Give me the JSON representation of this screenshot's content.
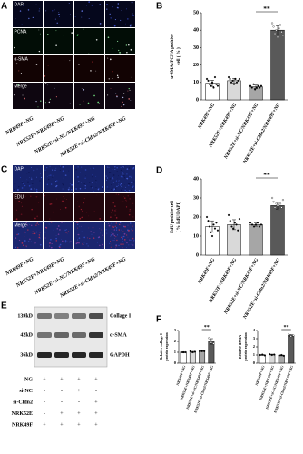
{
  "panel_a": {
    "letter": "A",
    "rows": [
      "DAPI",
      "PCNA",
      "α-SMA",
      "Merge"
    ],
    "columns": [
      "NRK49F+NG",
      "NRK52E+NRK49F+NG",
      "NRK52E+si-NC/NRK49F+NG",
      "NRK52E+si-Cldn2/NRK49F+NG"
    ]
  },
  "panel_c": {
    "letter": "C",
    "rows": [
      "DAPI",
      "EDU",
      "Merge"
    ],
    "columns": [
      "NRK49F+NG",
      "NRK52E+NRK49F+NG",
      "NRK52E+si-NC/NRK49F+NG",
      "NRK52E+si-Cldn2/NRK49F+NG"
    ]
  },
  "panel_e": {
    "letter": "E",
    "sizes": [
      "139kD",
      "42kD",
      "36kD"
    ],
    "proteins": [
      "Collage I",
      "α-SMA",
      "GAPDH"
    ],
    "conditions": [
      {
        "name": "NG",
        "signs": [
          "+",
          "+",
          "+",
          "+"
        ]
      },
      {
        "name": "si-NC",
        "signs": [
          "-",
          "-",
          "+",
          "-"
        ]
      },
      {
        "name": "si-Cldn2",
        "signs": [
          "-",
          "-",
          "-",
          "+"
        ]
      },
      {
        "name": "NRK52E",
        "signs": [
          "-",
          "+",
          "+",
          "+"
        ]
      },
      {
        "name": "NRK49F",
        "signs": [
          "+",
          "+",
          "+",
          "+"
        ]
      }
    ]
  },
  "chart_data": [
    {
      "type": "bar",
      "panel": "B",
      "ylabel": [
        "α-SMA /PCNA positive",
        "cell ( % )"
      ],
      "categories": [
        "NRK49F+NG",
        "NRK52E+NRK49F+NG",
        "NRK52E+si-NC/NRK49F+NG",
        "NRK52E+si-Cldn2/NRK49F+NG"
      ],
      "values": [
        9.5,
        11,
        7.5,
        40
      ],
      "errors": [
        1.8,
        1.3,
        1,
        2.6
      ],
      "points": [
        [
          12,
          11,
          9,
          8,
          10,
          7,
          13,
          9,
          8
        ],
        [
          13,
          12,
          10,
          11,
          9,
          12,
          10,
          11,
          12
        ],
        [
          8,
          7,
          9,
          6,
          7,
          8,
          7,
          8
        ],
        [
          44,
          42,
          38,
          40,
          36,
          41,
          43,
          39,
          37
        ]
      ],
      "colors": [
        "#ffffff",
        "#d9d9d9",
        "#a6a6a6",
        "#595959"
      ],
      "ylim": [
        0,
        50
      ],
      "yticks": [
        0,
        10,
        20,
        30,
        40,
        50
      ],
      "significance": "**"
    },
    {
      "type": "bar",
      "panel": "D",
      "ylabel": [
        "EdU positive cell",
        "( % EdU/DAPI)"
      ],
      "categories": [
        "NRK49F+NG",
        "NRK52E+NRK49F+NG",
        "NRK52E+si-NC/NRK49F+NG",
        "NRK52E+si-Cldn2/NRK49F+NG"
      ],
      "values": [
        15,
        16,
        16,
        26
      ],
      "errors": [
        3,
        2.6,
        0.8,
        1.8
      ],
      "points": [
        [
          20,
          18,
          15,
          12,
          10,
          16,
          14,
          17,
          13
        ],
        [
          21,
          18,
          15,
          14,
          17,
          16,
          13,
          19
        ],
        [
          17,
          16,
          15,
          16,
          17,
          15,
          16
        ],
        [
          30,
          28,
          25,
          27,
          26,
          24,
          27,
          25,
          29
        ]
      ],
      "colors": [
        "#ffffff",
        "#d9d9d9",
        "#a6a6a6",
        "#595959"
      ],
      "ylim": [
        0,
        40
      ],
      "yticks": [
        0,
        10,
        20,
        30,
        40
      ],
      "significance": "**"
    },
    {
      "type": "bar",
      "panel": "F",
      "ylabel": [
        "Relative collage I",
        "protein expression"
      ],
      "categories": [
        "NRK49F+NG",
        "NRK52E+NRK49F+NG",
        "NRK52E+si-NC/NRK49F+NG",
        "NRK52E+si-Cldn2/NRK49F+NG"
      ],
      "values": [
        1.0,
        1.03,
        1.1,
        2.0
      ],
      "errors": [
        0.05,
        0.05,
        0.03,
        0.25
      ],
      "points": [
        [
          1,
          1,
          1
        ],
        [
          1.1,
          1,
          1.05
        ],
        [
          1.1,
          1.1,
          1.1
        ],
        [
          2.3,
          1.9,
          1.8
        ]
      ],
      "colors": [
        "#ffffff",
        "#d9d9d9",
        "#a6a6a6",
        "#595959"
      ],
      "ylim": [
        0,
        3
      ],
      "yticks": [
        0,
        1,
        2,
        3
      ],
      "significance": "**"
    },
    {
      "type": "bar",
      "ylabel": [
        "Relative αSMA",
        "protein expression"
      ],
      "categories": [
        "NRK49F+NG",
        "NRK52E+NRK49F+NG",
        "NRK52E+si-NC/NRK49F+NG",
        "NRK52E+si-Cldn2/NRK49F+NG"
      ],
      "values": [
        1.0,
        1.05,
        0.95,
        3.4
      ],
      "errors": [
        0.05,
        0.05,
        0.05,
        0.1
      ],
      "points": [
        [
          1,
          1.05,
          0.95
        ],
        [
          1.1,
          1,
          1.05
        ],
        [
          0.95,
          1,
          0.9
        ],
        [
          3.5,
          3.3,
          3.4
        ]
      ],
      "colors": [
        "#ffffff",
        "#d9d9d9",
        "#a6a6a6",
        "#595959"
      ],
      "ylim": [
        0,
        4
      ],
      "yticks": [
        0,
        1,
        2,
        3,
        4
      ],
      "significance": "**"
    }
  ]
}
